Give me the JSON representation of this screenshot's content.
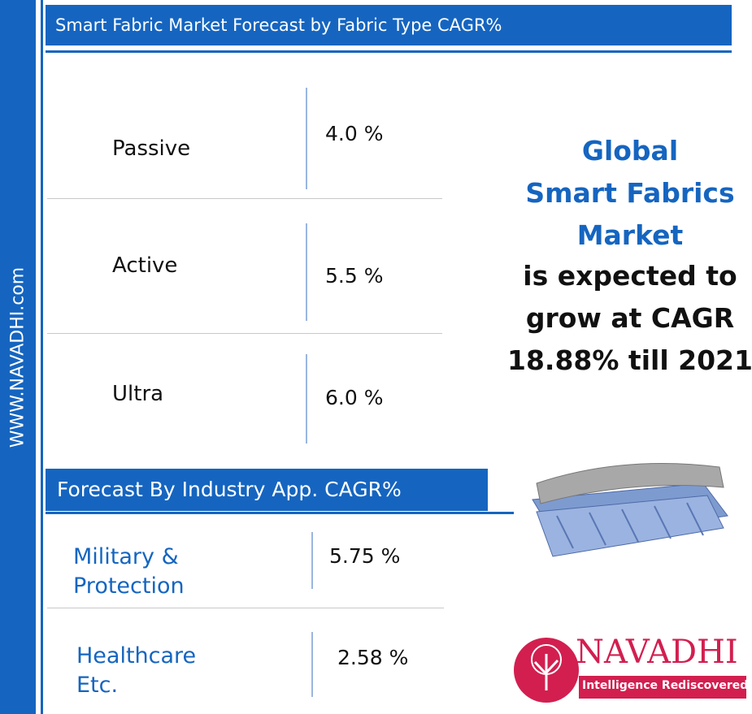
{
  "sidebar": {
    "text": "WWW.NAVADHI.com"
  },
  "fabric_section": {
    "title": "Smart Fabric Market Forecast by Fabric Type CAGR%",
    "rows": [
      [
        "Passive",
        "4.0 %"
      ],
      [
        "Active",
        "5.5 %"
      ],
      [
        "Ultra",
        "6.0 %"
      ]
    ]
  },
  "industry_section": {
    "title": "Forecast By Industry App. CAGR%",
    "rows": [
      [
        "Military & Protection",
        "5.75 %"
      ],
      [
        "Healthcare Etc.",
        "2.58 %"
      ]
    ]
  },
  "headline": {
    "highlight": [
      "Global",
      "Smart Fabrics",
      "Market"
    ],
    "body": [
      "is expected to",
      "grow at CAGR",
      "18.88% till 2021"
    ]
  },
  "logo": {
    "name": "NAVADHI",
    "tagline": "Intelligence Rediscovered"
  }
}
